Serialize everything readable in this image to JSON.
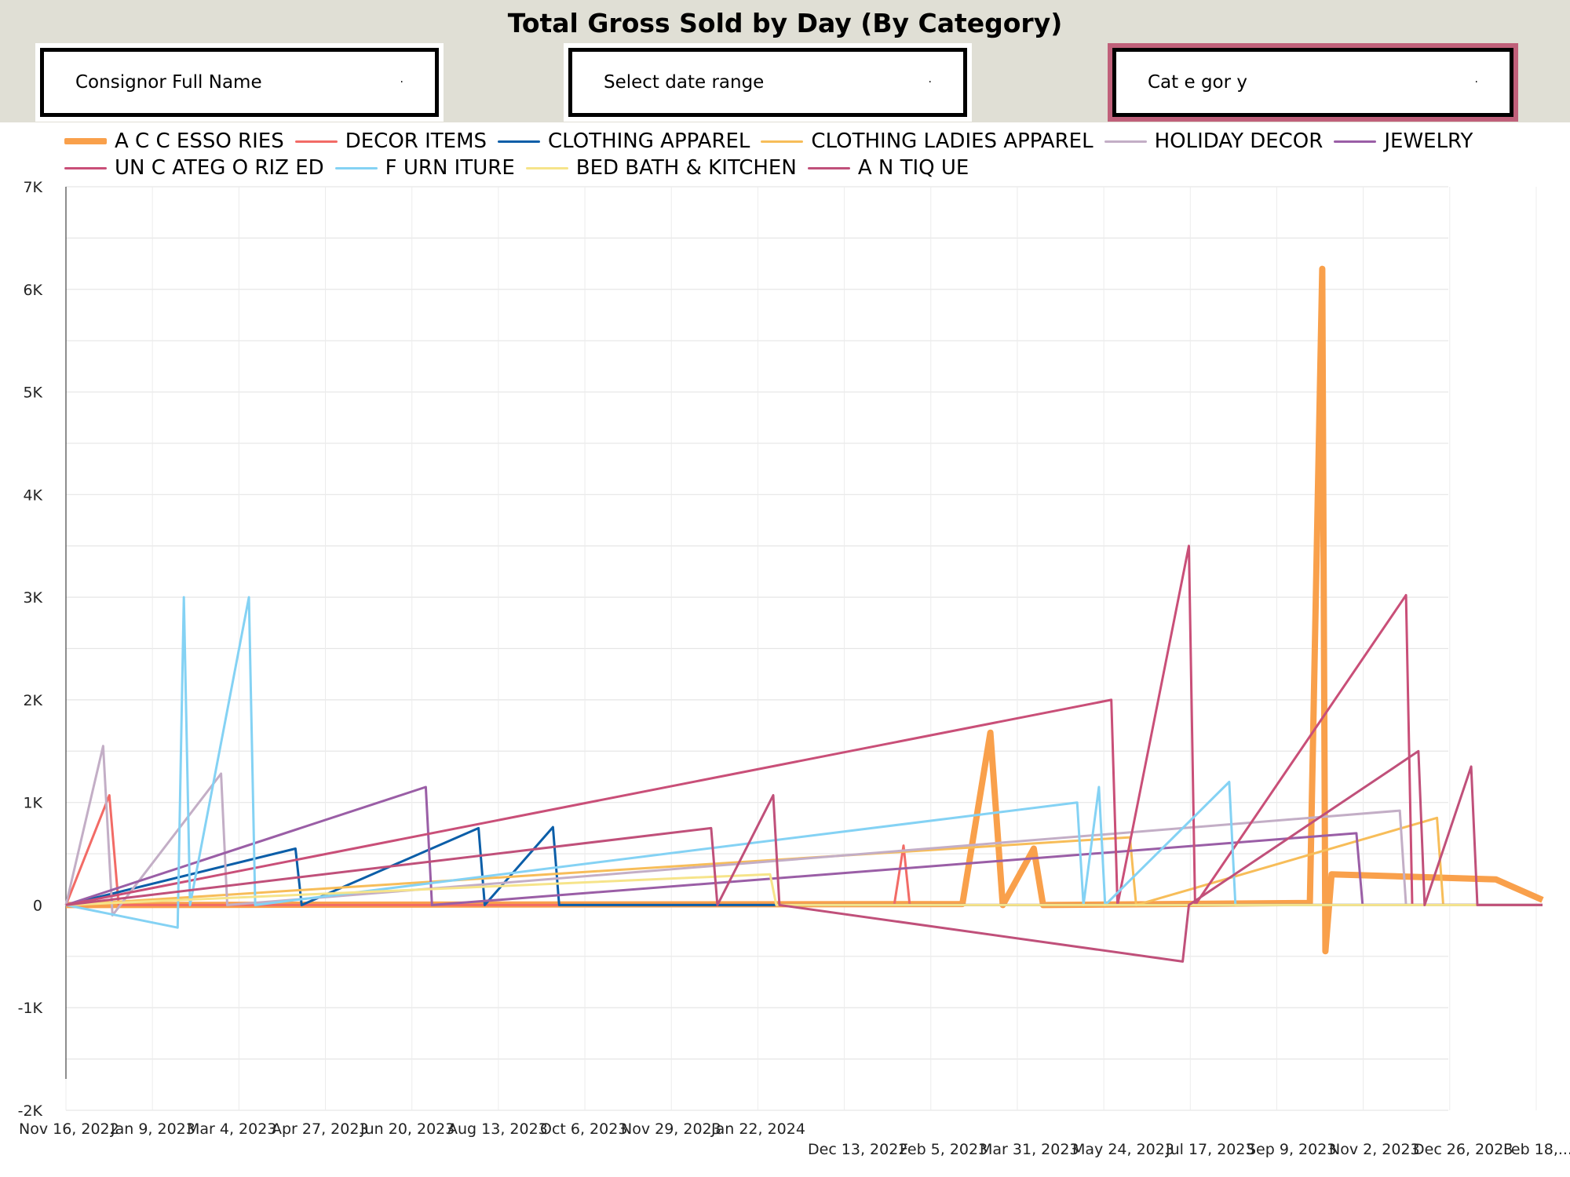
{
  "title": "Total Gross Sold by Day (By Category)",
  "filters": [
    {
      "label": "Consignor Full Name",
      "caret": "·"
    },
    {
      "label": "Select date range",
      "caret": "·"
    },
    {
      "label": "Cat e gor y",
      "caret": "·"
    }
  ],
  "colors": {
    "ACCESSORIES": "#f9a04b",
    "DECOR ITEMS": "#f26b66",
    "CLOTHING APPAREL": "#0b5ea8",
    "CLOTHING LADIES APPAREL": "#f7bd59",
    "HOLIDAY DECOR": "#c3aec6",
    "JEWELRY": "#9a5ea6",
    "UNCATEGORIZED": "#c94f78",
    "FURNITURE": "#84d2f4",
    "BED BATH & KITCHEN": "#f6e48a",
    "ANTIQUE": "#c0507a"
  },
  "chart_data": {
    "type": "line",
    "title": "Total Gross Sold by Day (By Category)",
    "xlabel": "",
    "ylabel": "",
    "ylim": [
      -2000,
      7000
    ],
    "yticks": [
      "7K",
      "6K",
      "5K",
      "4K",
      "3K",
      "2K",
      "1K",
      "0",
      "-1K",
      "-2K"
    ],
    "xticks_row1": [
      "Nov 16, 2022",
      "Jan 9, 2023",
      "Mar 4, 2023",
      "Apr 27, 2023",
      "Jun 20, 2023",
      "Aug 13, 2023",
      "Oct 6, 2023",
      "Nov 29, 2023",
      "Jan 22, 2024"
    ],
    "xticks_row2": [
      "Dec 13, 2022",
      "Feb 5, 2023",
      "Mar 31, 2023",
      "May 24, 2023",
      "Jul 17, 2023",
      "Sep 9, 2023",
      "Nov 2, 2023",
      "Dec 26, 2023",
      "Feb 18,..."
    ],
    "legend_position": "top",
    "grid": true,
    "x_range": [
      "2022-11-16",
      "2024-03-06"
    ],
    "series": [
      {
        "name": "A C C ESSO RIES",
        "key": "ACCESSORIES",
        "thick": true,
        "points": [
          [
            "2022-11-16",
            0
          ],
          [
            "2023-09-01",
            10
          ],
          [
            "2023-09-10",
            1680
          ],
          [
            "2023-09-14",
            0
          ],
          [
            "2023-09-24",
            550
          ],
          [
            "2023-09-27",
            0
          ],
          [
            "2023-12-22",
            20
          ],
          [
            "2023-12-26",
            6200
          ],
          [
            "2023-12-27",
            -450
          ],
          [
            "2023-12-29",
            300
          ],
          [
            "2024-02-20",
            250
          ],
          [
            "2024-03-06",
            50
          ]
        ]
      },
      {
        "name": "DECOR ITEMS",
        "key": "DECOR ITEMS",
        "points": [
          [
            "2022-11-16",
            0
          ],
          [
            "2022-11-30",
            1070
          ],
          [
            "2022-12-03",
            0
          ],
          [
            "2023-08-10",
            0
          ],
          [
            "2023-08-13",
            580
          ],
          [
            "2023-08-15",
            0
          ],
          [
            "2024-03-06",
            0
          ]
        ]
      },
      {
        "name": "CLOTHING APPAREL",
        "key": "CLOTHING APPAREL",
        "points": [
          [
            "2022-11-16",
            0
          ],
          [
            "2023-01-29",
            550
          ],
          [
            "2023-01-31",
            0
          ],
          [
            "2023-03-29",
            750
          ],
          [
            "2023-03-31",
            0
          ],
          [
            "2023-04-22",
            760
          ],
          [
            "2023-04-24",
            0
          ],
          [
            "2024-03-06",
            0
          ]
        ]
      },
      {
        "name": "CLOTHING LADIES APPAREL",
        "key": "CLOTHING LADIES APPAREL",
        "points": [
          [
            "2022-11-16",
            0
          ],
          [
            "2023-10-25",
            660
          ],
          [
            "2023-10-27",
            0
          ],
          [
            "2024-02-01",
            850
          ],
          [
            "2024-02-03",
            0
          ],
          [
            "2024-03-06",
            0
          ]
        ]
      },
      {
        "name": "HOLIDAY DECOR",
        "key": "HOLIDAY DECOR",
        "points": [
          [
            "2022-11-16",
            0
          ],
          [
            "2022-11-28",
            1550
          ],
          [
            "2022-12-01",
            -100
          ],
          [
            "2023-01-05",
            1280
          ],
          [
            "2023-01-07",
            0
          ],
          [
            "2024-01-20",
            920
          ],
          [
            "2024-01-22",
            0
          ],
          [
            "2024-03-06",
            0
          ]
        ]
      },
      {
        "name": "JEWELRY",
        "key": "JEWELRY",
        "points": [
          [
            "2022-11-16",
            0
          ],
          [
            "2023-03-12",
            1150
          ],
          [
            "2023-03-14",
            0
          ],
          [
            "2024-01-06",
            700
          ],
          [
            "2024-01-08",
            0
          ],
          [
            "2024-03-06",
            0
          ]
        ]
      },
      {
        "name": "UN C ATEG O RIZ ED",
        "key": "UNCATEGORIZED",
        "points": [
          [
            "2022-11-16",
            0
          ],
          [
            "2023-10-19",
            2000
          ],
          [
            "2023-10-21",
            0
          ],
          [
            "2023-11-13",
            3500
          ],
          [
            "2023-11-15",
            0
          ],
          [
            "2024-01-22",
            3020
          ],
          [
            "2024-01-24",
            0
          ],
          [
            "2024-03-06",
            0
          ]
        ]
      },
      {
        "name": "F URN ITURE",
        "key": "FURNITURE",
        "points": [
          [
            "2022-11-16",
            0
          ],
          [
            "2022-12-22",
            -220
          ],
          [
            "2022-12-24",
            3000
          ],
          [
            "2022-12-26",
            0
          ],
          [
            "2023-01-14",
            3000
          ],
          [
            "2023-01-16",
            0
          ],
          [
            "2023-10-08",
            1000
          ],
          [
            "2023-10-10",
            0
          ],
          [
            "2023-10-15",
            1150
          ],
          [
            "2023-10-17",
            0
          ],
          [
            "2023-11-26",
            1200
          ],
          [
            "2023-11-28",
            0
          ],
          [
            "2024-03-06",
            0
          ]
        ]
      },
      {
        "name": "BED BATH & KITCHEN",
        "key": "BED BATH & KITCHEN",
        "points": [
          [
            "2022-11-16",
            0
          ],
          [
            "2023-07-01",
            300
          ],
          [
            "2023-07-03",
            0
          ],
          [
            "2024-03-06",
            0
          ]
        ]
      },
      {
        "name": "A N TIQ UE",
        "key": "ANTIQUE",
        "points": [
          [
            "2022-11-16",
            0
          ],
          [
            "2023-06-12",
            750
          ],
          [
            "2023-06-14",
            0
          ],
          [
            "2023-07-02",
            1070
          ],
          [
            "2023-07-04",
            0
          ],
          [
            "2023-11-11",
            -550
          ],
          [
            "2023-11-13",
            0
          ],
          [
            "2024-01-26",
            1500
          ],
          [
            "2024-01-28",
            0
          ],
          [
            "2024-02-12",
            1350
          ],
          [
            "2024-02-14",
            0
          ],
          [
            "2024-03-06",
            0
          ]
        ]
      }
    ]
  }
}
